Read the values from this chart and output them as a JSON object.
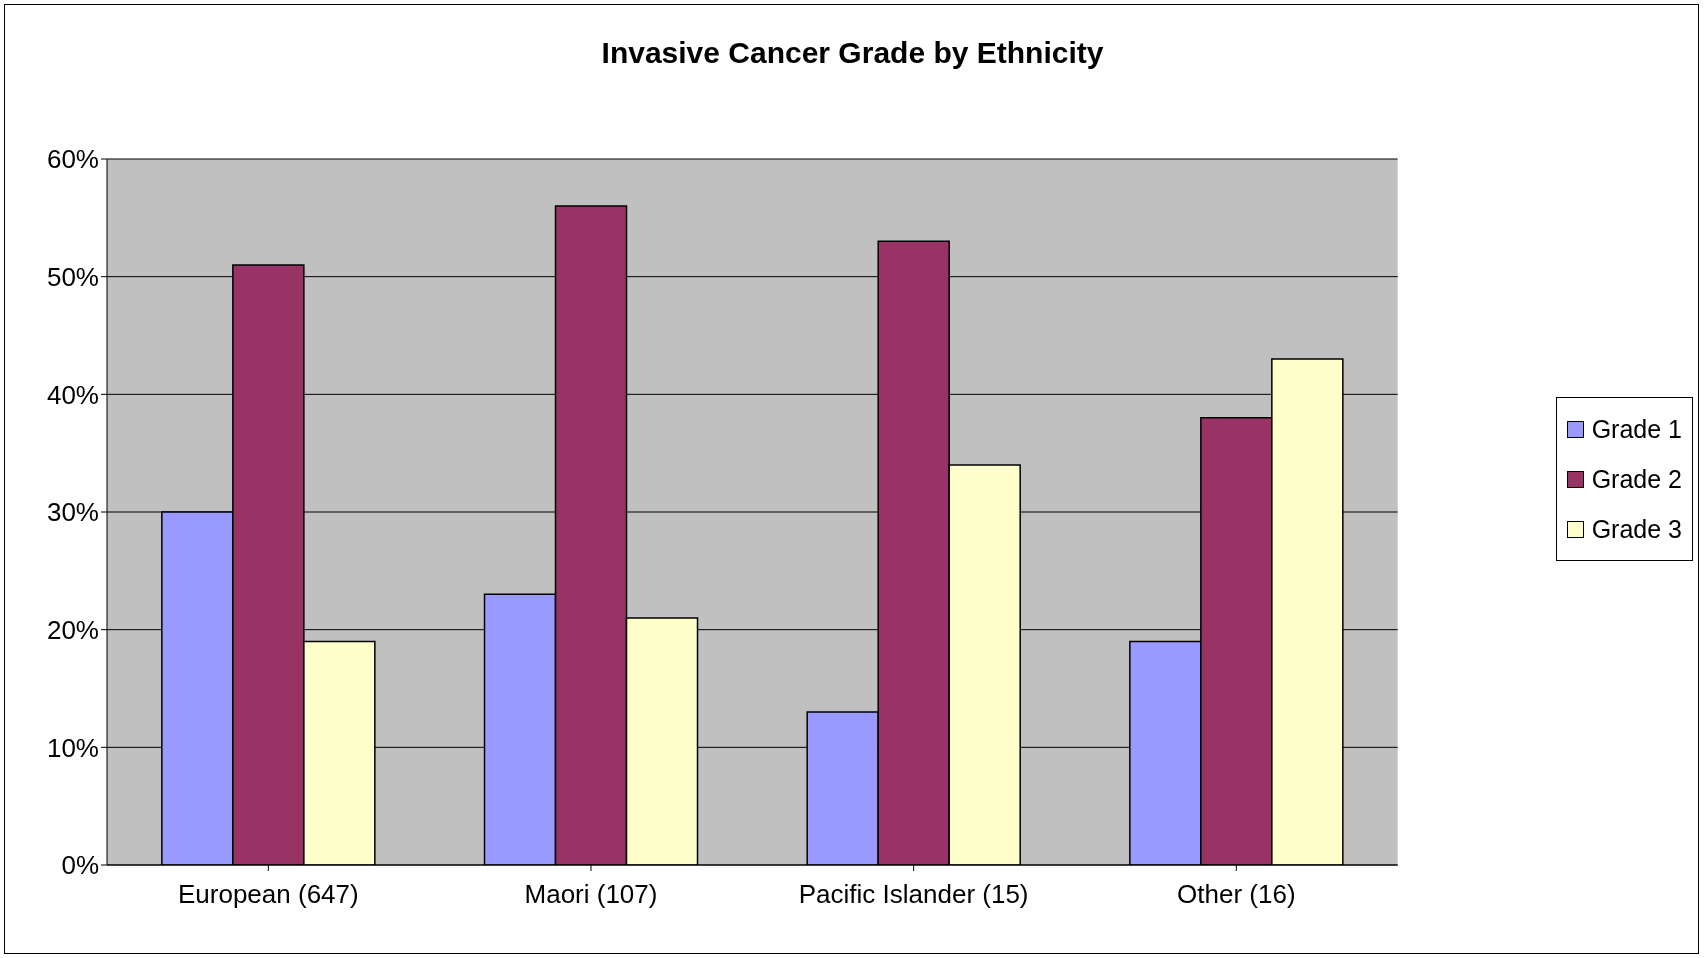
{
  "chart_data": {
    "type": "bar",
    "title": "Invasive Cancer Grade by Ethnicity",
    "categories": [
      "European (647)",
      "Maori (107)",
      "Pacific Islander (15)",
      "Other (16)"
    ],
    "series": [
      {
        "name": "Grade 1",
        "color": "#9999ff",
        "values": [
          30,
          23,
          13,
          19
        ]
      },
      {
        "name": "Grade 2",
        "color": "#993366",
        "values": [
          51,
          56,
          53,
          38
        ]
      },
      {
        "name": "Grade 3",
        "color": "#ffffcc",
        "values": [
          19,
          21,
          34,
          43
        ]
      }
    ],
    "ylim": [
      0,
      60
    ],
    "yticks": [
      {
        "value": 0,
        "label": "0%"
      },
      {
        "value": 10,
        "label": "10%"
      },
      {
        "value": 20,
        "label": "20%"
      },
      {
        "value": 30,
        "label": "30%"
      },
      {
        "value": 40,
        "label": "40%"
      },
      {
        "value": 50,
        "label": "50%"
      },
      {
        "value": 60,
        "label": "60%"
      }
    ],
    "grid": "y",
    "legend": "right"
  }
}
